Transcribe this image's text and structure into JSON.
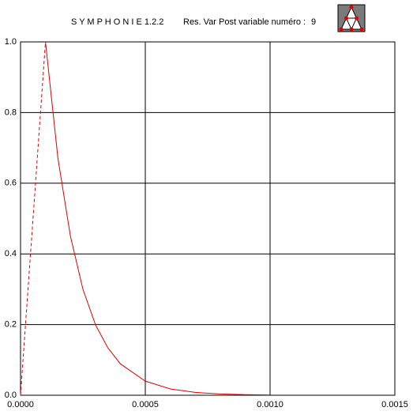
{
  "chart_data": {
    "type": "line",
    "title": "S Y M P H O N I E   1.2.2",
    "subtitle": "Res. Var Post variable numéro  :",
    "variable_number": "9",
    "x": [
      0,
      5e-05,
      0.0001,
      0.00015,
      0.0002,
      0.00025,
      0.0003,
      0.00035,
      0.0004,
      0.0005,
      0.0006,
      0.0007,
      0.0008,
      0.0009,
      0.001
    ],
    "series": [
      {
        "color": "#e00000",
        "dashed": true,
        "values": [
          0,
          0.5,
          1.0,
          null,
          null,
          null,
          null,
          null,
          null,
          null,
          null,
          null,
          null,
          null,
          null
        ]
      },
      {
        "color": "#e00000",
        "dashed": false,
        "values": [
          null,
          null,
          1.0,
          0.67,
          0.45,
          0.3,
          0.2,
          0.134,
          0.089,
          0.04,
          0.018,
          0.008,
          0.0036,
          0.0016,
          0.0007
        ]
      }
    ],
    "xlim": [
      0,
      0.0015
    ],
    "ylim": [
      0,
      1
    ],
    "xticks": [
      {
        "value": 0,
        "label": "0.0000"
      },
      {
        "value": 0.0005,
        "label": "0.0005"
      },
      {
        "value": 0.001,
        "label": "0.0010"
      },
      {
        "value": 0.0015,
        "label": "0.0015"
      }
    ],
    "yticks": [
      {
        "value": 0,
        "label": "0.0"
      },
      {
        "value": 0.2,
        "label": "0.2"
      },
      {
        "value": 0.4,
        "label": "0.4"
      },
      {
        "value": 0.6,
        "label": "0.6"
      },
      {
        "value": 0.8,
        "label": "0.8"
      },
      {
        "value": 1,
        "label": "1.0"
      }
    ],
    "grid": true
  }
}
